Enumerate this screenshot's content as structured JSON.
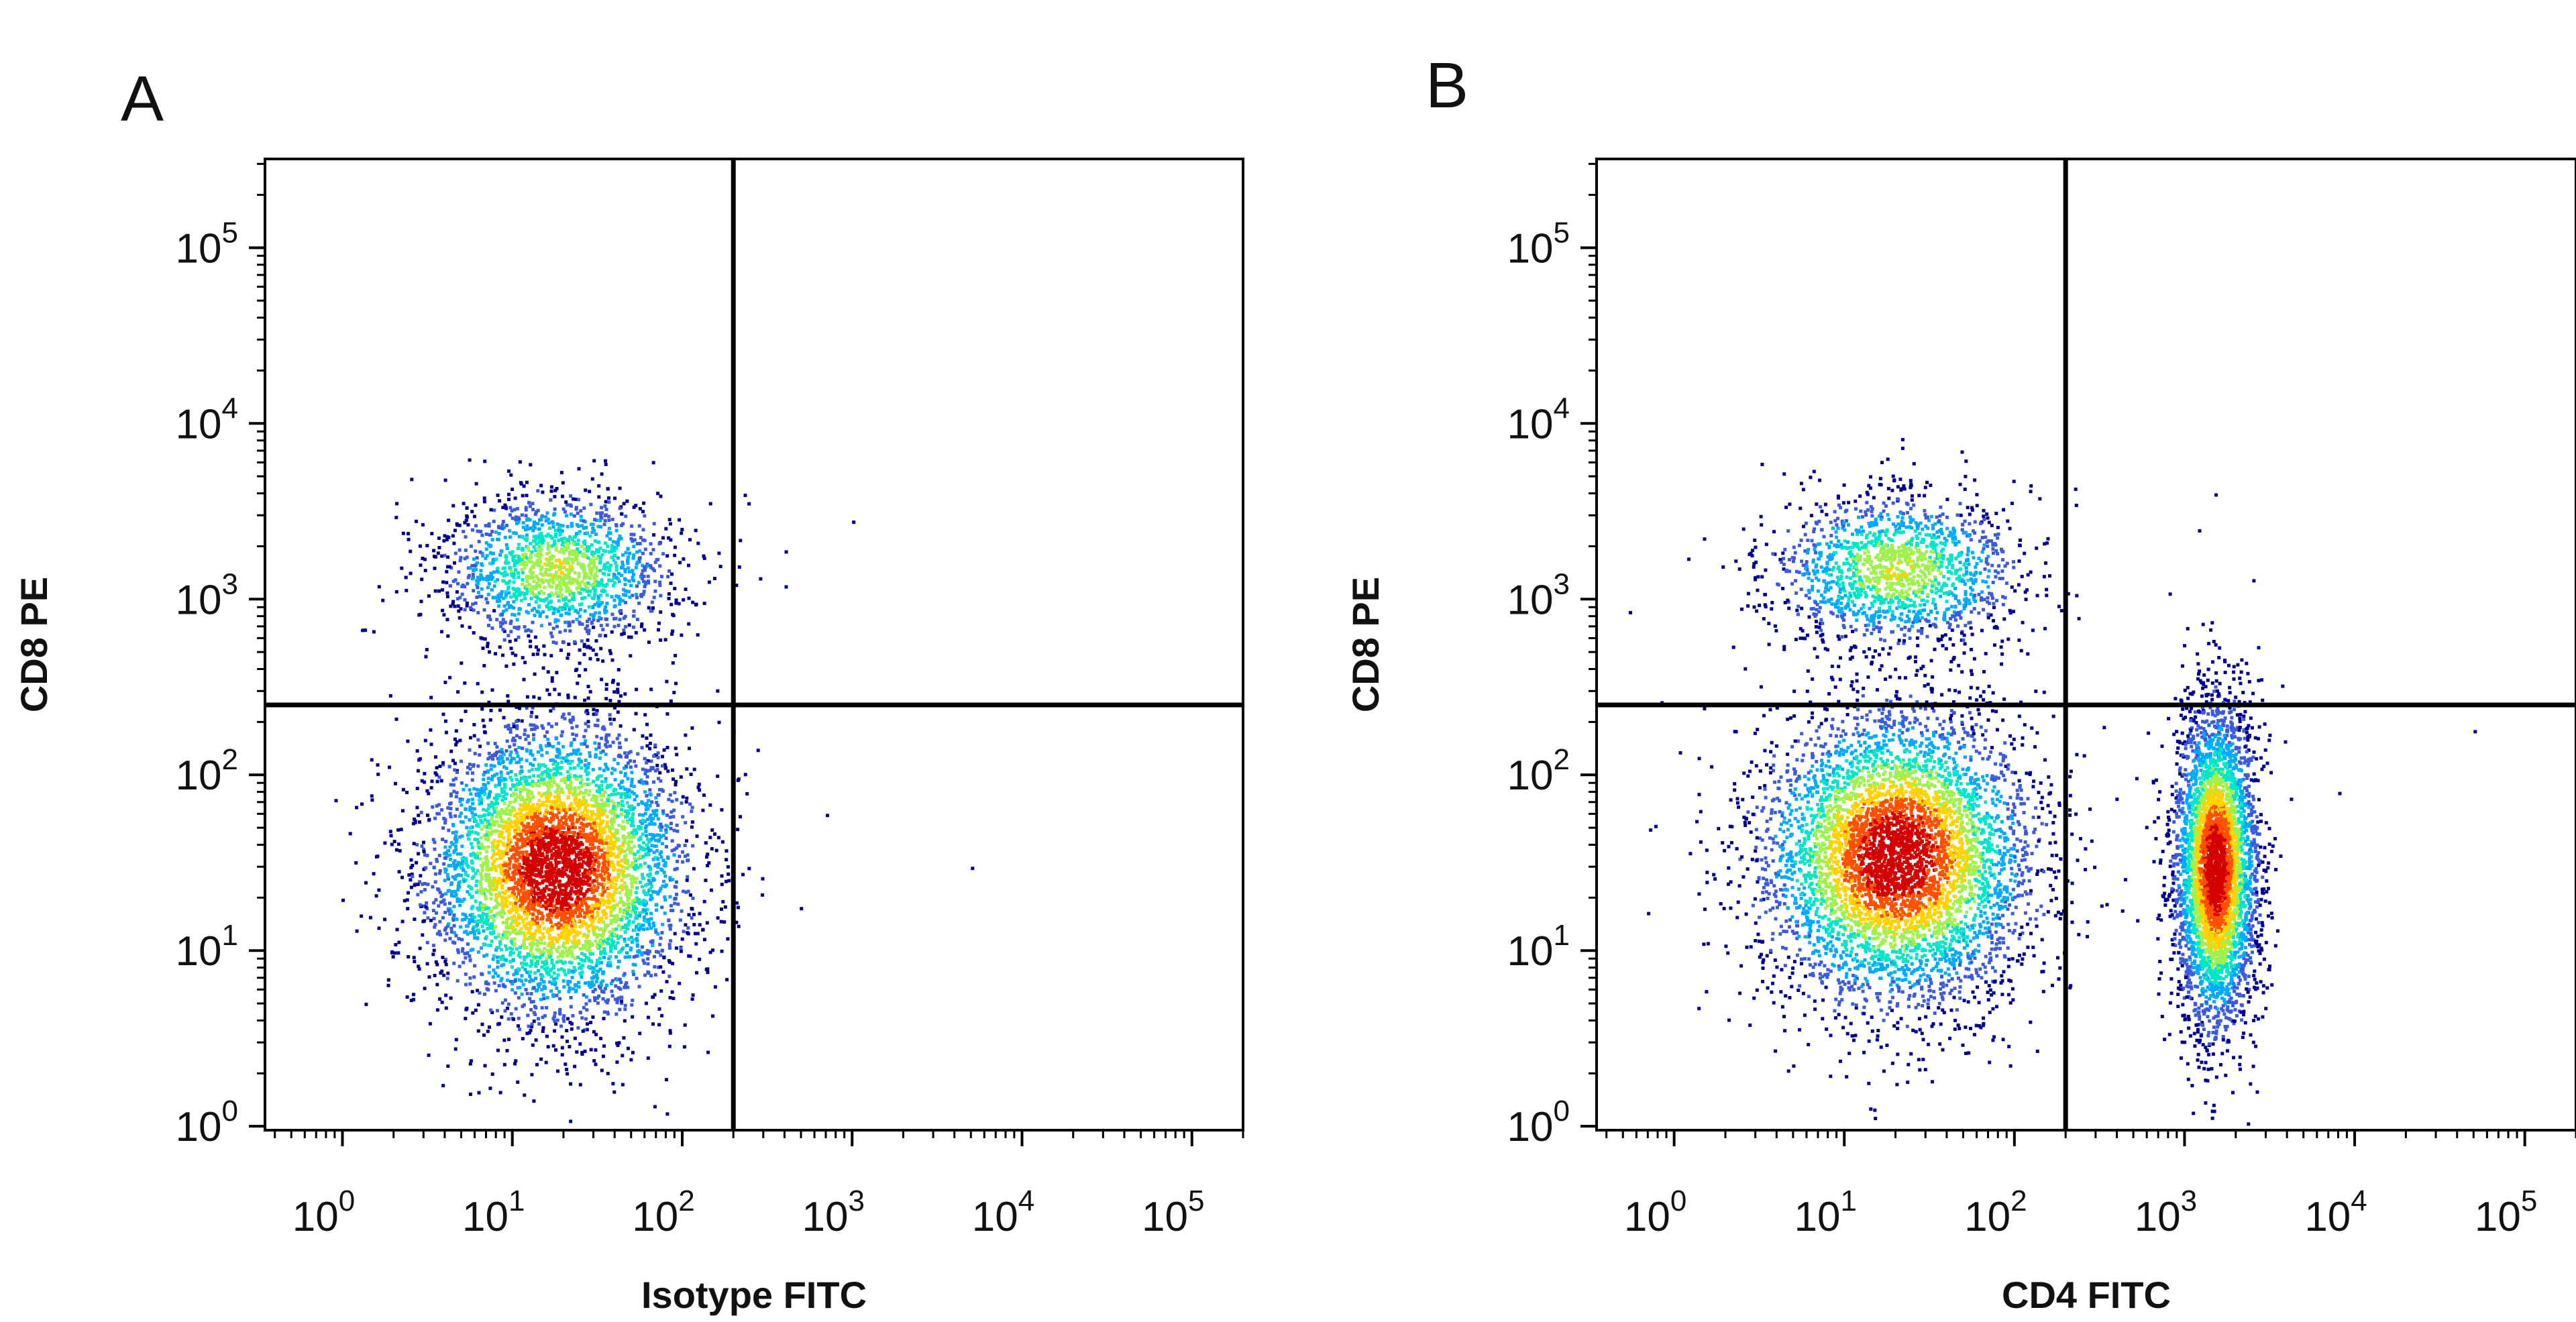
{
  "chart_data": [
    {
      "type": "scatter",
      "panel_label": "A",
      "xlabel": "Isotype FITC",
      "ylabel": "CD8 PE",
      "x_scale": "log",
      "y_scale": "log",
      "xlim": [
        0.35,
        200000
      ],
      "ylim": [
        0.95,
        320000
      ],
      "x_ticks": [
        1,
        10,
        100,
        1000,
        10000,
        100000
      ],
      "y_ticks": [
        1,
        10,
        100,
        1000,
        10000,
        100000
      ],
      "tick_labels": [
        "10^0",
        "10^1",
        "10^2",
        "10^3",
        "10^4",
        "10^5"
      ],
      "quadrant_gate": {
        "x": 200,
        "y": 250
      },
      "grid": false,
      "populations": [
        {
          "name_note": "",
          "x_center": 18,
          "y_center": 30,
          "relative_density": 1.0,
          "spread_x_decades": 0.38,
          "spread_y_decades": 0.42
        },
        {
          "name_note": "",
          "x_center": 18,
          "y_center": 1500,
          "relative_density": 0.3,
          "spread_x_decades": 0.35,
          "spread_y_decades": 0.22
        }
      ],
      "sparse_events": [
        [
          1000,
          2800
        ],
        [
          700,
          60
        ],
        [
          5000,
          30
        ],
        [
          80,
          1.2
        ],
        [
          400,
          1200
        ]
      ]
    },
    {
      "type": "scatter",
      "panel_label": "B",
      "xlabel": "CD4 FITC",
      "ylabel": "CD8 PE",
      "x_scale": "log",
      "y_scale": "log",
      "xlim": [
        0.35,
        200000
      ],
      "ylim": [
        0.95,
        320000
      ],
      "x_ticks": [
        1,
        10,
        100,
        1000,
        10000,
        100000
      ],
      "y_ticks": [
        1,
        10,
        100,
        1000,
        10000,
        100000
      ],
      "tick_labels": [
        "10^0",
        "10^1",
        "10^2",
        "10^3",
        "10^4",
        "10^5"
      ],
      "quadrant_gate": {
        "x": 200,
        "y": 250
      },
      "grid": false,
      "populations": [
        {
          "name_note": "",
          "x_center": 20,
          "y_center": 35,
          "relative_density": 1.0,
          "spread_x_decades": 0.4,
          "spread_y_decades": 0.42
        },
        {
          "name_note": "",
          "x_center": 20,
          "y_center": 1500,
          "relative_density": 0.3,
          "spread_x_decades": 0.38,
          "spread_y_decades": 0.22
        },
        {
          "name_note": "",
          "x_center": 1500,
          "y_center": 30,
          "relative_density": 0.8,
          "spread_x_decades": 0.12,
          "spread_y_decades": 0.45
        }
      ],
      "sparse_events": [
        [
          1500,
          4000
        ],
        [
          1200,
          2500
        ],
        [
          2500,
          1300
        ],
        [
          50000,
          180
        ],
        [
          8000,
          80
        ]
      ]
    }
  ],
  "colors": {
    "density_scale": [
      "#00008c",
      "#3c5adc",
      "#00aaff",
      "#00e6c8",
      "#a0f050",
      "#ffd200",
      "#ff5000",
      "#d20000"
    ],
    "gate_line": "#000000",
    "axis": "#000000"
  }
}
